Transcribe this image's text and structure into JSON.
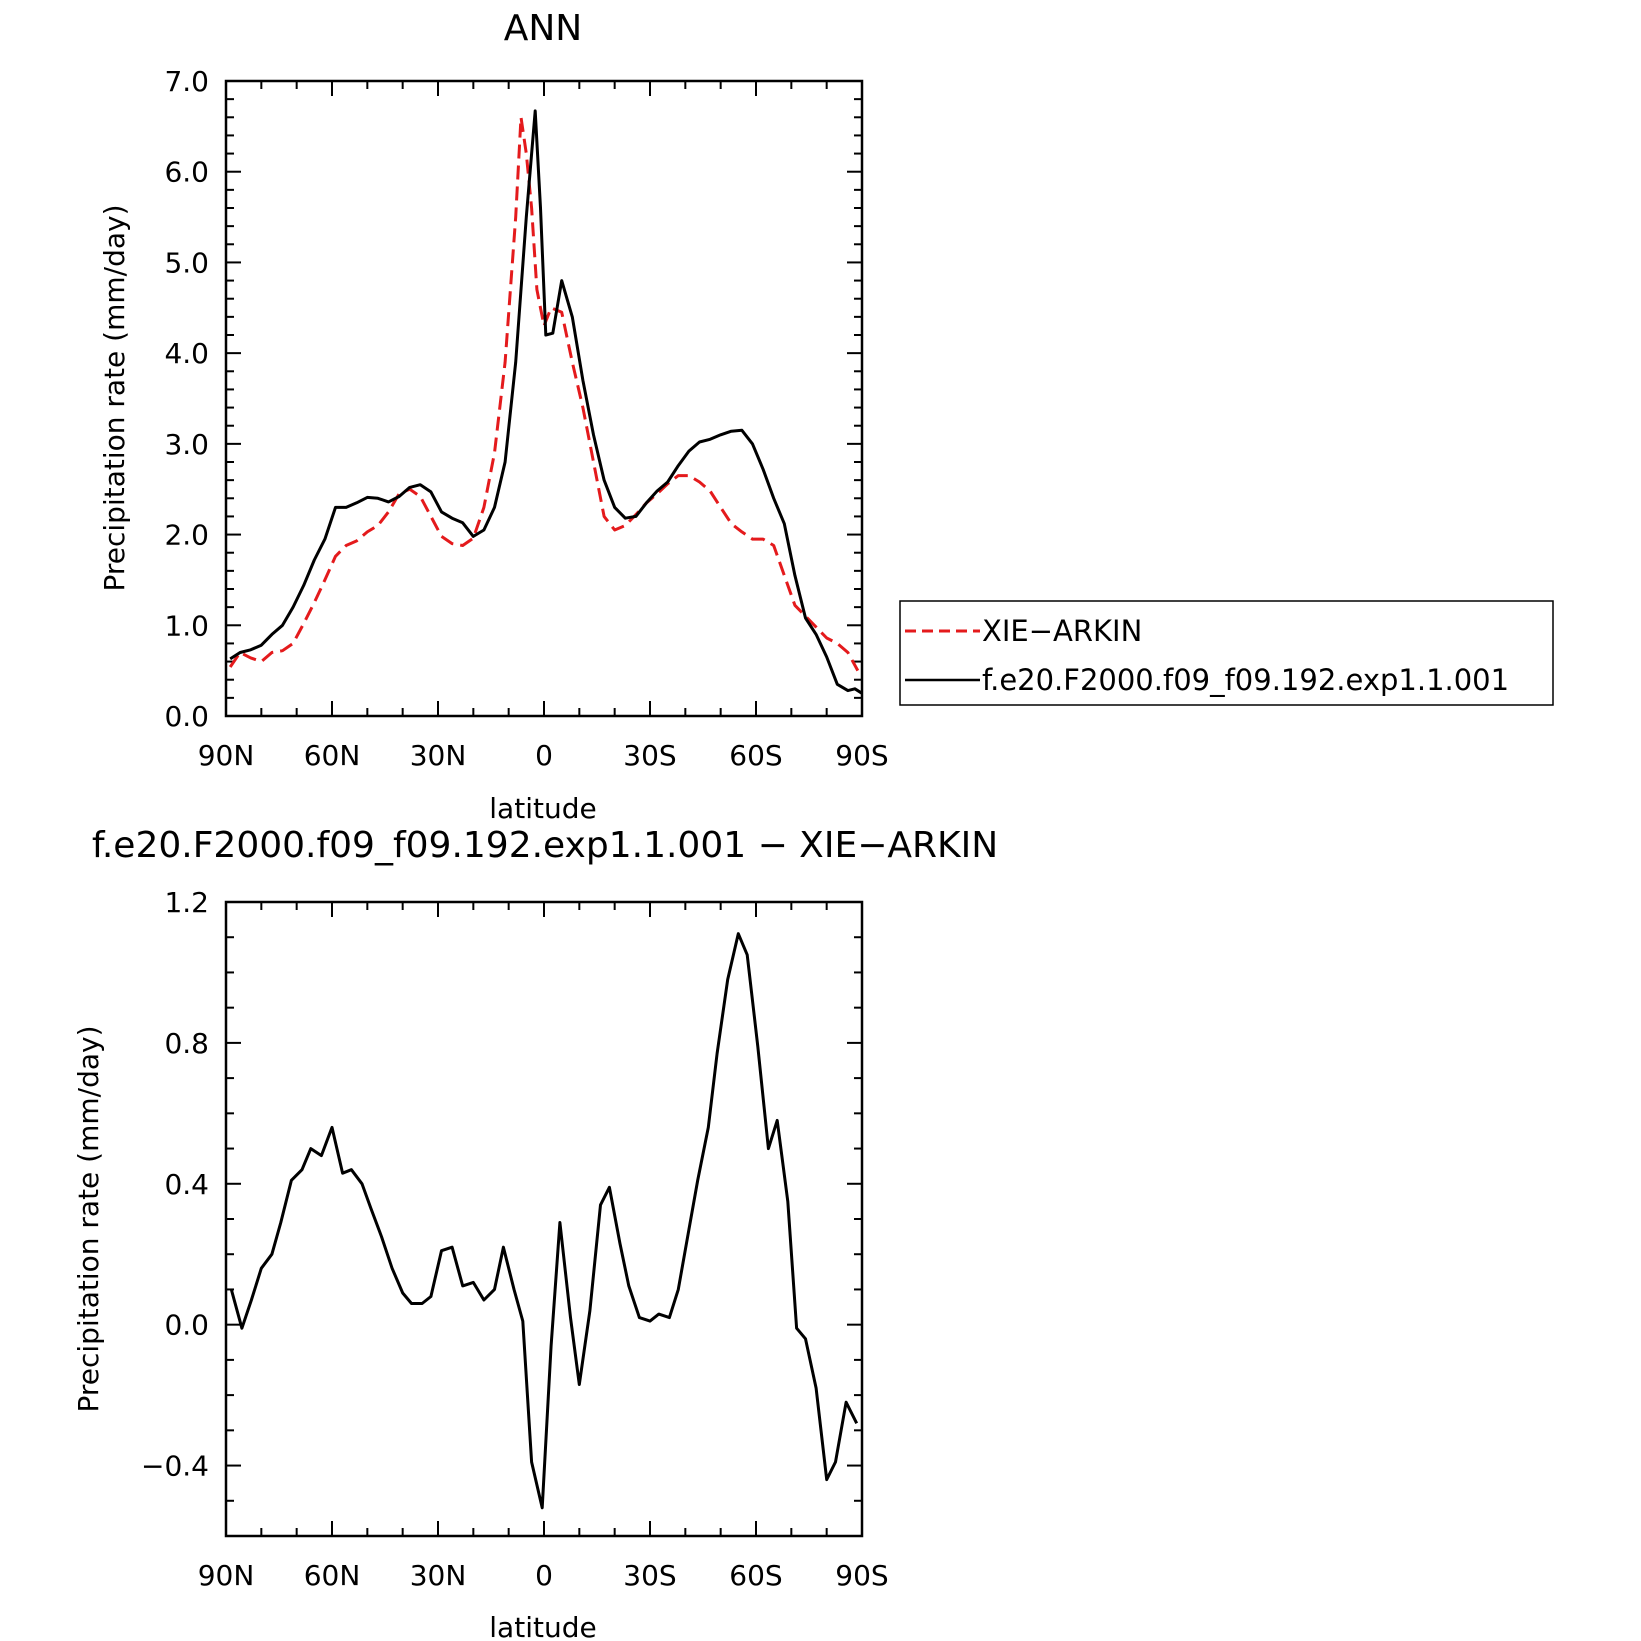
{
  "figure": {
    "background": "#ffffff"
  },
  "chart_data": [
    {
      "type": "line",
      "title": "ANN",
      "xlabel": "latitude",
      "ylabel": "Precipitation rate (mm/day)",
      "xlim": [
        90,
        -90
      ],
      "ylim": [
        0.0,
        7.0
      ],
      "xticks": [
        {
          "value": 90,
          "label": "90N"
        },
        {
          "value": 60,
          "label": "60N"
        },
        {
          "value": 30,
          "label": "30N"
        },
        {
          "value": 0,
          "label": "0"
        },
        {
          "value": -30,
          "label": "30S"
        },
        {
          "value": -60,
          "label": "60S"
        },
        {
          "value": -90,
          "label": "90S"
        }
      ],
      "yticks": [
        {
          "value": 0.0,
          "label": "0.0"
        },
        {
          "value": 1.0,
          "label": "1.0"
        },
        {
          "value": 2.0,
          "label": "2.0"
        },
        {
          "value": 3.0,
          "label": "3.0"
        },
        {
          "value": 4.0,
          "label": "4.0"
        },
        {
          "value": 5.0,
          "label": "5.0"
        },
        {
          "value": 6.0,
          "label": "6.0"
        },
        {
          "value": 7.0,
          "label": "7.0"
        }
      ],
      "legend": "right",
      "series": [
        {
          "name": "XIE−ARKIN",
          "color": "#e41a1c",
          "dash": "dashed",
          "points": [
            [
              88.8,
              0.54
            ],
            [
              86,
              0.7
            ],
            [
              83,
              0.64
            ],
            [
              80,
              0.6
            ],
            [
              77,
              0.7
            ],
            [
              74,
              0.72
            ],
            [
              71,
              0.8
            ],
            [
              68,
              1.02
            ],
            [
              65,
              1.25
            ],
            [
              62,
              1.5
            ],
            [
              59,
              1.76
            ],
            [
              56,
              1.88
            ],
            [
              53,
              1.93
            ],
            [
              50,
              2.03
            ],
            [
              47,
              2.1
            ],
            [
              44,
              2.25
            ],
            [
              41,
              2.45
            ],
            [
              38,
              2.5
            ],
            [
              35,
              2.42
            ],
            [
              32,
              2.2
            ],
            [
              29,
              1.98
            ],
            [
              26,
              1.9
            ],
            [
              23,
              1.88
            ],
            [
              20,
              1.96
            ],
            [
              17,
              2.3
            ],
            [
              14,
              2.9
            ],
            [
              11,
              3.9
            ],
            [
              8,
              5.5
            ],
            [
              6.5,
              6.6
            ],
            [
              5,
              6.2
            ],
            [
              3.5,
              5.6
            ],
            [
              2,
              4.7
            ],
            [
              0,
              4.3
            ],
            [
              -2,
              4.5
            ],
            [
              -5,
              4.45
            ],
            [
              -8,
              3.9
            ],
            [
              -11,
              3.4
            ],
            [
              -14,
              2.8
            ],
            [
              -17,
              2.2
            ],
            [
              -20,
              2.05
            ],
            [
              -23,
              2.1
            ],
            [
              -26,
              2.22
            ],
            [
              -29,
              2.35
            ],
            [
              -32,
              2.45
            ],
            [
              -35,
              2.56
            ],
            [
              -38,
              2.65
            ],
            [
              -41,
              2.65
            ],
            [
              -44,
              2.58
            ],
            [
              -47,
              2.48
            ],
            [
              -50,
              2.3
            ],
            [
              -53,
              2.12
            ],
            [
              -56,
              2.03
            ],
            [
              -59,
              1.95
            ],
            [
              -62,
              1.95
            ],
            [
              -65,
              1.88
            ],
            [
              -68,
              1.55
            ],
            [
              -71,
              1.22
            ],
            [
              -74,
              1.1
            ],
            [
              -77,
              0.98
            ],
            [
              -80,
              0.86
            ],
            [
              -83,
              0.8
            ],
            [
              -86,
              0.7
            ],
            [
              -88.8,
              0.5
            ]
          ]
        },
        {
          "name": "f.e20.F2000.f09_f09.192.exp1.1.001",
          "color": "#000000",
          "dash": "solid",
          "points": [
            [
              88.8,
              0.63
            ],
            [
              86,
              0.7
            ],
            [
              83,
              0.73
            ],
            [
              80,
              0.78
            ],
            [
              77,
              0.9
            ],
            [
              74,
              1.0
            ],
            [
              71,
              1.2
            ],
            [
              68,
              1.44
            ],
            [
              65,
              1.72
            ],
            [
              62,
              1.95
            ],
            [
              59,
              2.3
            ],
            [
              56,
              2.3
            ],
            [
              53,
              2.35
            ],
            [
              50,
              2.41
            ],
            [
              47,
              2.4
            ],
            [
              44,
              2.36
            ],
            [
              41,
              2.42
            ],
            [
              38,
              2.52
            ],
            [
              35,
              2.55
            ],
            [
              32,
              2.47
            ],
            [
              29,
              2.25
            ],
            [
              26,
              2.18
            ],
            [
              23,
              2.13
            ],
            [
              20,
              1.98
            ],
            [
              17,
              2.05
            ],
            [
              14,
              2.3
            ],
            [
              11,
              2.8
            ],
            [
              8,
              3.9
            ],
            [
              5,
              5.5
            ],
            [
              2.5,
              6.67
            ],
            [
              1,
              5.6
            ],
            [
              -0.5,
              4.2
            ],
            [
              -2.5,
              4.22
            ],
            [
              -5,
              4.8
            ],
            [
              -8,
              4.4
            ],
            [
              -11,
              3.7
            ],
            [
              -14,
              3.1
            ],
            [
              -17,
              2.6
            ],
            [
              -20,
              2.3
            ],
            [
              -23,
              2.18
            ],
            [
              -26,
              2.2
            ],
            [
              -29,
              2.35
            ],
            [
              -32,
              2.48
            ],
            [
              -35,
              2.58
            ],
            [
              -38,
              2.76
            ],
            [
              -41,
              2.92
            ],
            [
              -44,
              3.02
            ],
            [
              -47,
              3.05
            ],
            [
              -50,
              3.1
            ],
            [
              -53,
              3.14
            ],
            [
              -56,
              3.15
            ],
            [
              -59,
              3.0
            ],
            [
              -62,
              2.72
            ],
            [
              -65,
              2.4
            ],
            [
              -68,
              2.12
            ],
            [
              -71,
              1.55
            ],
            [
              -74,
              1.08
            ],
            [
              -77,
              0.9
            ],
            [
              -80,
              0.65
            ],
            [
              -83,
              0.35
            ],
            [
              -86,
              0.28
            ],
            [
              -88,
              0.3
            ],
            [
              -90,
              0.25
            ]
          ]
        }
      ]
    },
    {
      "type": "line",
      "title": "f.e20.F2000.f09_f09.192.exp1.1.001 − XIE−ARKIN",
      "xlabel": "latitude",
      "ylabel": "Precipitation rate (mm/day)",
      "xlim": [
        90,
        -90
      ],
      "ylim": [
        -0.6,
        1.2
      ],
      "xticks": [
        {
          "value": 90,
          "label": "90N"
        },
        {
          "value": 60,
          "label": "60N"
        },
        {
          "value": 30,
          "label": "30N"
        },
        {
          "value": 0,
          "label": "0"
        },
        {
          "value": -30,
          "label": "30S"
        },
        {
          "value": -60,
          "label": "60S"
        },
        {
          "value": -90,
          "label": "90S"
        }
      ],
      "yticks": [
        {
          "value": -0.4,
          "label": "−0.4"
        },
        {
          "value": 0.0,
          "label": "0.0"
        },
        {
          "value": 0.4,
          "label": "0.4"
        },
        {
          "value": 0.8,
          "label": "0.8"
        },
        {
          "value": 1.2,
          "label": "1.2"
        }
      ],
      "series": [
        {
          "color": "#000000",
          "dash": "solid",
          "points": [
            [
              88.5,
              0.1
            ],
            [
              85.5,
              -0.01
            ],
            [
              82.8,
              0.07
            ],
            [
              80,
              0.16
            ],
            [
              77,
              0.2
            ],
            [
              74.5,
              0.29
            ],
            [
              71.5,
              0.41
            ],
            [
              68.5,
              0.44
            ],
            [
              66,
              0.5
            ],
            [
              63,
              0.48
            ],
            [
              60,
              0.56
            ],
            [
              57,
              0.43
            ],
            [
              54.5,
              0.44
            ],
            [
              51.5,
              0.4
            ],
            [
              49,
              0.33
            ],
            [
              46,
              0.25
            ],
            [
              43,
              0.16
            ],
            [
              40,
              0.09
            ],
            [
              37.5,
              0.06
            ],
            [
              34.5,
              0.06
            ],
            [
              32,
              0.08
            ],
            [
              29,
              0.21
            ],
            [
              26,
              0.22
            ],
            [
              23,
              0.11
            ],
            [
              20,
              0.12
            ],
            [
              17,
              0.07
            ],
            [
              14,
              0.1
            ],
            [
              11.5,
              0.22
            ],
            [
              8.5,
              0.1
            ],
            [
              6,
              0.01
            ],
            [
              3.5,
              -0.39
            ],
            [
              0.5,
              -0.52
            ],
            [
              -2,
              -0.06
            ],
            [
              -4.5,
              0.29
            ],
            [
              -7.5,
              0.02
            ],
            [
              -10,
              -0.17
            ],
            [
              -13,
              0.04
            ],
            [
              -16,
              0.34
            ],
            [
              -18.5,
              0.39
            ],
            [
              -21.5,
              0.23
            ],
            [
              -24,
              0.11
            ],
            [
              -27,
              0.02
            ],
            [
              -30,
              0.01
            ],
            [
              -32.5,
              0.03
            ],
            [
              -35.5,
              0.02
            ],
            [
              -38,
              0.1
            ],
            [
              -41,
              0.27
            ],
            [
              -43.5,
              0.41
            ],
            [
              -46.5,
              0.56
            ],
            [
              -49,
              0.77
            ],
            [
              -52,
              0.98
            ],
            [
              -55,
              1.11
            ],
            [
              -57.5,
              1.05
            ],
            [
              -60.5,
              0.79
            ],
            [
              -63.5,
              0.5
            ],
            [
              -66,
              0.58
            ],
            [
              -69,
              0.35
            ],
            [
              -71.5,
              -0.01
            ],
            [
              -74,
              -0.04
            ],
            [
              -77,
              -0.18
            ],
            [
              -80,
              -0.44
            ],
            [
              -82.5,
              -0.39
            ],
            [
              -85.5,
              -0.22
            ],
            [
              -88.5,
              -0.28
            ]
          ]
        }
      ]
    }
  ]
}
